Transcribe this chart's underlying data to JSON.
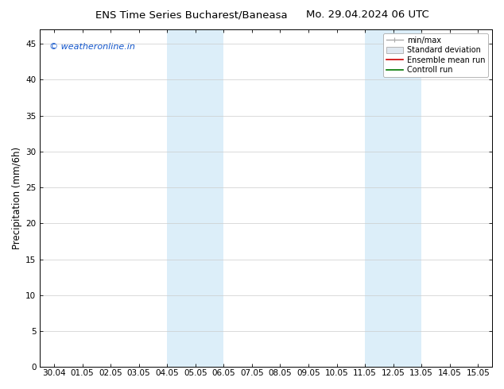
{
  "title_left": "ENS Time Series Bucharest/Baneasa",
  "title_right": "Mo. 29.04.2024 06 UTC",
  "ylabel": "Precipitation (mm/6h)",
  "ylim": [
    0,
    47
  ],
  "yticks": [
    0,
    5,
    10,
    15,
    20,
    25,
    30,
    35,
    40,
    45
  ],
  "background_color": "#ffffff",
  "plot_bg_color": "#ffffff",
  "shaded_regions": [
    {
      "x_start": "04.05",
      "x_end": "06.05",
      "color": "#dceef9"
    },
    {
      "x_start": "11.05",
      "x_end": "13.05",
      "color": "#dceef9"
    }
  ],
  "xtick_labels": [
    "30.04",
    "01.05",
    "02.05",
    "03.05",
    "04.05",
    "05.05",
    "06.05",
    "07.05",
    "08.05",
    "09.05",
    "10.05",
    "11.05",
    "12.05",
    "13.05",
    "14.05",
    "15.05"
  ],
  "watermark_text": "© weatheronline.in",
  "watermark_color": "#1155cc",
  "legend_labels": [
    "min/max",
    "Standard deviation",
    "Ensemble mean run",
    "Controll run"
  ],
  "legend_colors_line": [
    "#aaaaaa",
    "#cccccc",
    "#cc0000",
    "#007700"
  ],
  "font_size_title": 9.5,
  "font_size_ticks": 7.5,
  "font_size_ylabel": 8.5,
  "font_size_watermark": 8,
  "font_size_legend": 7,
  "grid_color": "#cccccc",
  "axis_color": "#000000"
}
